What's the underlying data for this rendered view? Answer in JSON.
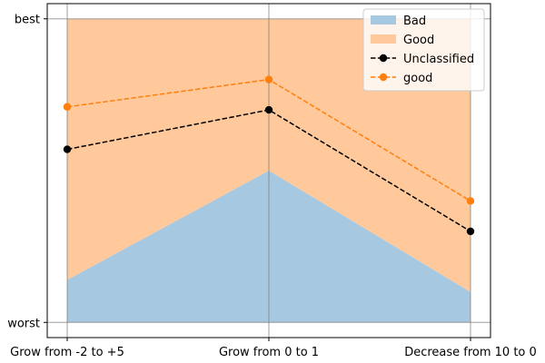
{
  "chart_data": {
    "type": "area",
    "title": "",
    "xlabel": "",
    "ylabel": "",
    "categories": [
      "Grow from -2 to +5",
      "Grow from 0 to 1",
      "Decrease from 10 to 0"
    ],
    "y_ticks": [
      {
        "value": 0,
        "label": "worst"
      },
      {
        "value": 1,
        "label": "best"
      }
    ],
    "ylim": [
      -0.05,
      1.05
    ],
    "grid": true,
    "legend_position": "top-right",
    "areas": [
      {
        "name": "Bad",
        "lower": [
          0,
          0,
          0
        ],
        "upper": [
          0.14,
          0.5,
          0.1
        ],
        "color": "#a6c8e1"
      },
      {
        "name": "Good",
        "lower": [
          0.14,
          0.5,
          0.1
        ],
        "upper": [
          1,
          1,
          1
        ],
        "color": "#ffc99b"
      }
    ],
    "series": [
      {
        "name": "Unclassified",
        "values": [
          0.57,
          0.7,
          0.3
        ],
        "color": "#000000",
        "style": "dashed",
        "marker": "circle"
      },
      {
        "name": "good",
        "values": [
          0.71,
          0.8,
          0.4
        ],
        "color": "#ff7f0e",
        "style": "dashed",
        "marker": "circle"
      }
    ],
    "legend": [
      {
        "name": "Bad",
        "kind": "patch",
        "color": "#a6c8e1"
      },
      {
        "name": "Good",
        "kind": "patch",
        "color": "#ffc99b"
      },
      {
        "name": "Unclassified",
        "kind": "line",
        "color": "#000000"
      },
      {
        "name": "good",
        "kind": "line",
        "color": "#ff7f0e"
      }
    ]
  }
}
